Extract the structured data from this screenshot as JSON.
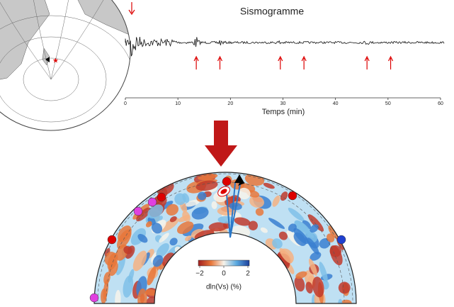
{
  "seismogram": {
    "title": "Sismogramme",
    "x_label": "Temps (min)",
    "xlim": [
      0,
      60
    ],
    "xticks": [
      0,
      10,
      20,
      30,
      40,
      50,
      60
    ],
    "arrivals": [
      13.5,
      18,
      29.5,
      34,
      46,
      50.5
    ]
  },
  "colorbar": {
    "label": "dln(Vs) (%)",
    "lim": [
      -2,
      2
    ],
    "ticks": [
      {
        "value": -2,
        "label": "−2"
      },
      0,
      2
    ]
  }
}
